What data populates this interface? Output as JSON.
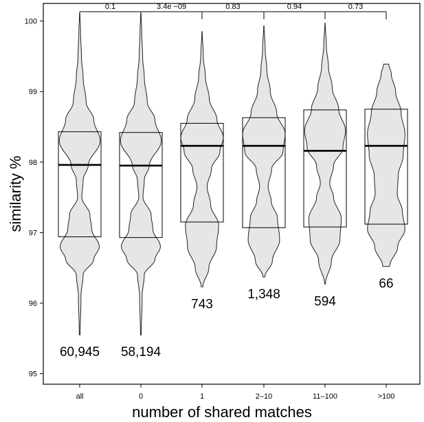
{
  "chart_data": {
    "type": "violin",
    "xlabel": "number of shared matches",
    "ylabel": "similarity %",
    "ylim": [
      94.85,
      100.25
    ],
    "yticks": [
      95,
      96,
      97,
      98,
      99,
      100
    ],
    "grid": false,
    "categories": [
      "all",
      "0",
      "1",
      "2–10",
      "11–100",
      ">100"
    ],
    "counts": [
      "60,945",
      "58,194",
      "743",
      "1,348",
      "594",
      "66"
    ],
    "groups": [
      {
        "category": "all",
        "q1": 96.94,
        "median": 97.96,
        "q3": 98.43,
        "min": 95.55,
        "max": 100.1,
        "density": [
          [
            95.55,
            0.01
          ],
          [
            96.1,
            0.03
          ],
          [
            96.4,
            0.08
          ],
          [
            96.62,
            0.33
          ],
          [
            96.8,
            0.46
          ],
          [
            97.05,
            0.28
          ],
          [
            97.25,
            0.24
          ],
          [
            97.5,
            0.05
          ],
          [
            97.75,
            0.08
          ],
          [
            97.95,
            0.2
          ],
          [
            98.3,
            0.48
          ],
          [
            98.6,
            0.33
          ],
          [
            98.85,
            0.15
          ],
          [
            99.2,
            0.08
          ],
          [
            99.5,
            0.04
          ],
          [
            99.85,
            0.02
          ],
          [
            100.1,
            0.005
          ]
        ]
      },
      {
        "category": "0",
        "q1": 96.93,
        "median": 97.95,
        "q3": 98.42,
        "min": 95.55,
        "max": 100.1,
        "density": [
          [
            95.55,
            0.01
          ],
          [
            96.1,
            0.03
          ],
          [
            96.4,
            0.08
          ],
          [
            96.62,
            0.33
          ],
          [
            96.8,
            0.46
          ],
          [
            97.05,
            0.28
          ],
          [
            97.25,
            0.24
          ],
          [
            97.5,
            0.05
          ],
          [
            97.75,
            0.08
          ],
          [
            97.95,
            0.2
          ],
          [
            98.3,
            0.48
          ],
          [
            98.6,
            0.33
          ],
          [
            98.85,
            0.15
          ],
          [
            99.2,
            0.08
          ],
          [
            99.5,
            0.04
          ],
          [
            99.85,
            0.02
          ],
          [
            100.1,
            0.005
          ]
        ]
      },
      {
        "category": "1",
        "q1": 97.15,
        "median": 98.23,
        "q3": 98.55,
        "min": 96.23,
        "max": 99.85,
        "density": [
          [
            96.23,
            0.02
          ],
          [
            96.5,
            0.16
          ],
          [
            96.8,
            0.34
          ],
          [
            97.1,
            0.39
          ],
          [
            97.4,
            0.2
          ],
          [
            97.65,
            0.12
          ],
          [
            97.9,
            0.22
          ],
          [
            98.15,
            0.42
          ],
          [
            98.35,
            0.5
          ],
          [
            98.6,
            0.35
          ],
          [
            98.9,
            0.17
          ],
          [
            99.2,
            0.08
          ],
          [
            99.5,
            0.03
          ],
          [
            99.85,
            0.005
          ]
        ]
      },
      {
        "category": "2–10",
        "q1": 97.07,
        "median": 98.23,
        "q3": 98.63,
        "min": 96.37,
        "max": 99.93,
        "density": [
          [
            96.37,
            0.02
          ],
          [
            96.6,
            0.2
          ],
          [
            96.9,
            0.37
          ],
          [
            97.2,
            0.32
          ],
          [
            97.45,
            0.17
          ],
          [
            97.65,
            0.1
          ],
          [
            97.9,
            0.18
          ],
          [
            98.15,
            0.45
          ],
          [
            98.4,
            0.5
          ],
          [
            98.7,
            0.3
          ],
          [
            99.0,
            0.15
          ],
          [
            99.3,
            0.07
          ],
          [
            99.6,
            0.03
          ],
          [
            99.93,
            0.005
          ]
        ]
      },
      {
        "category": "11–100",
        "q1": 97.08,
        "median": 98.16,
        "q3": 98.74,
        "min": 96.27,
        "max": 99.97,
        "density": [
          [
            96.27,
            0.01
          ],
          [
            96.6,
            0.15
          ],
          [
            96.9,
            0.35
          ],
          [
            97.2,
            0.38
          ],
          [
            97.5,
            0.2
          ],
          [
            97.7,
            0.11
          ],
          [
            97.95,
            0.2
          ],
          [
            98.2,
            0.42
          ],
          [
            98.45,
            0.48
          ],
          [
            98.75,
            0.32
          ],
          [
            99.05,
            0.17
          ],
          [
            99.35,
            0.08
          ],
          [
            99.65,
            0.03
          ],
          [
            99.97,
            0.005
          ]
        ]
      },
      {
        "category": ">100",
        "q1": 97.12,
        "median": 98.23,
        "q3": 98.75,
        "min": 96.52,
        "max": 99.39,
        "density": [
          [
            96.52,
            0.08
          ],
          [
            96.8,
            0.27
          ],
          [
            97.05,
            0.44
          ],
          [
            97.3,
            0.38
          ],
          [
            97.55,
            0.26
          ],
          [
            97.8,
            0.28
          ],
          [
            98.1,
            0.4
          ],
          [
            98.4,
            0.44
          ],
          [
            98.7,
            0.35
          ],
          [
            99.0,
            0.22
          ],
          [
            99.25,
            0.12
          ],
          [
            99.39,
            0.06
          ]
        ]
      }
    ],
    "comparisons": [
      {
        "groups": [
          0,
          1
        ],
        "p": "0.1"
      },
      {
        "groups": [
          1,
          2
        ],
        "p": "3.4e −09"
      },
      {
        "groups": [
          2,
          3
        ],
        "p": "0.83"
      },
      {
        "groups": [
          3,
          4
        ],
        "p": "0.94"
      },
      {
        "groups": [
          4,
          5
        ],
        "p": "0.73"
      }
    ]
  }
}
